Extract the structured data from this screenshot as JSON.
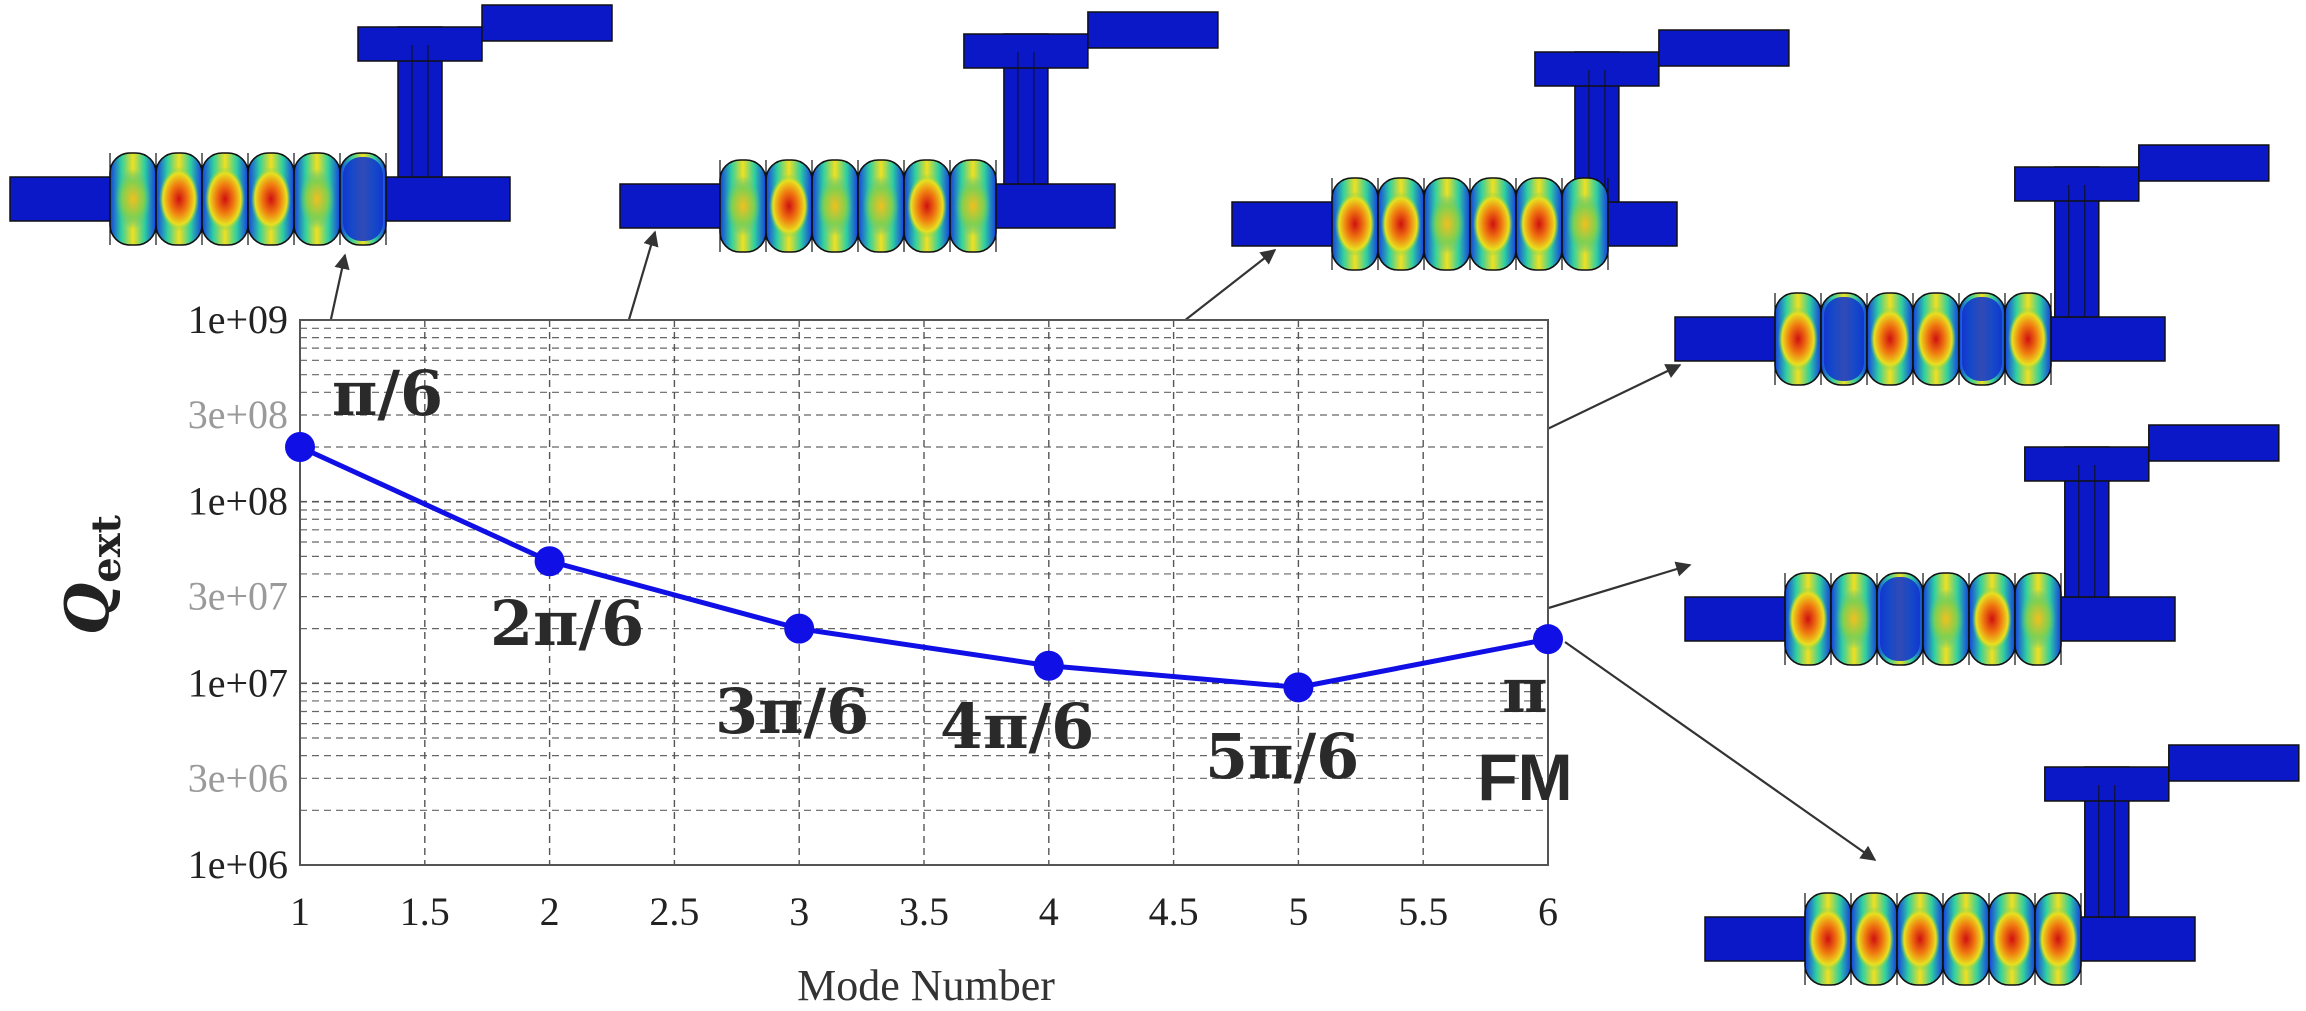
{
  "chart_data": {
    "type": "line",
    "xlabel": "Mode Number",
    "ylabel": "Q",
    "ylabel_subscript": "ext",
    "y_scale": "log",
    "xlim": [
      1,
      6
    ],
    "ylim": [
      1000000,
      1000000000
    ],
    "grid": true,
    "x_ticks": [
      "1",
      "1.5",
      "2",
      "2.5",
      "3",
      "3.5",
      "4",
      "4.5",
      "5",
      "5.5",
      "6"
    ],
    "x_tick_values": [
      1,
      1.5,
      2,
      2.5,
      3,
      3.5,
      4,
      4.5,
      5,
      5.5,
      6
    ],
    "y_ticks": [
      {
        "label": "1e+09",
        "value": 1000000000,
        "style": "dark"
      },
      {
        "label": "3e+08",
        "value": 300000000,
        "style": "light"
      },
      {
        "label": "1e+08",
        "value": 100000000,
        "style": "dark"
      },
      {
        "label": "3e+07",
        "value": 30000000,
        "style": "light"
      },
      {
        "label": "1e+07",
        "value": 10000000,
        "style": "dark"
      },
      {
        "label": "3e+06",
        "value": 3000000,
        "style": "light"
      },
      {
        "label": "1e+06",
        "value": 1000000,
        "style": "dark"
      }
    ],
    "series": [
      {
        "color": "#1010e6",
        "x": [
          1,
          2,
          3,
          4,
          5,
          6
        ],
        "y": [
          200000000,
          47000000,
          20000000,
          12500000,
          9500000,
          17500000
        ]
      }
    ],
    "annotations": [
      {
        "label": "π/6"
      },
      {
        "label": "2π/6"
      },
      {
        "label": "3π/6"
      },
      {
        "label": "4π/6"
      },
      {
        "label": "5π/6"
      },
      {
        "label": "π",
        "sublabel": "FM"
      }
    ],
    "colors": {
      "line": "#1010e6",
      "field_blue": "#0a18c8",
      "field_red": "#d01010",
      "field_yellow": "#f0e020",
      "field_green": "#30c060",
      "arrow": "#333333"
    }
  }
}
